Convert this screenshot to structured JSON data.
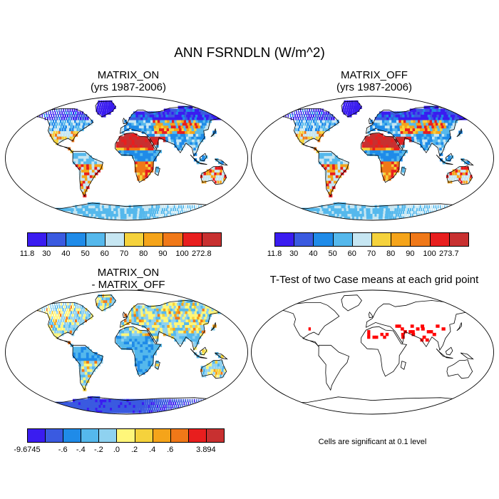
{
  "title": "ANN FSRNDLN (W/m^2)",
  "panels": [
    {
      "id": "on",
      "line1": "MATRIX_ON",
      "line2": "(yrs 1987-2006)"
    },
    {
      "id": "off",
      "line1": "MATRIX_OFF",
      "line2": "(yrs 1987-2006)"
    },
    {
      "id": "diff",
      "line1": "MATRIX_ON",
      "line2": "- MATRIX_OFF"
    },
    {
      "id": "ttest",
      "line1": "T-Test of two Case means at each grid point",
      "line2": ""
    }
  ],
  "colorbars": {
    "on": {
      "colors": [
        "#3a1cf0",
        "#3a5ae0",
        "#1f8be8",
        "#55b8ec",
        "#c6e6f2",
        "#f5d23c",
        "#f5a41a",
        "#f07818",
        "#e81e1e",
        "#c83030"
      ],
      "labels": [
        "11.8",
        "30",
        "40",
        "50",
        "60",
        "70",
        "80",
        "90",
        "100",
        "272.8"
      ]
    },
    "off": {
      "colors": [
        "#3a1cf0",
        "#3a5ae0",
        "#1f8be8",
        "#55b8ec",
        "#c6e6f2",
        "#f5d23c",
        "#f5a41a",
        "#f07818",
        "#e81e1e",
        "#c83030"
      ],
      "labels": [
        "11.8",
        "30",
        "40",
        "50",
        "60",
        "70",
        "80",
        "90",
        "100",
        "273.7"
      ]
    },
    "diff": {
      "colors": [
        "#3a1cf0",
        "#3a5ae0",
        "#1f8be8",
        "#55b8ec",
        "#8fd2f0",
        "#fff67a",
        "#f5d23c",
        "#f5a41a",
        "#f07818",
        "#e81e1e",
        "#c83030"
      ],
      "labels": [
        "-9.6745",
        "",
        "-.6",
        "-.4",
        "-.2",
        ".0",
        ".2",
        ".4",
        ".6",
        "",
        "3.894"
      ]
    }
  },
  "significance_note": "Cells are significant at 0.1 level"
}
